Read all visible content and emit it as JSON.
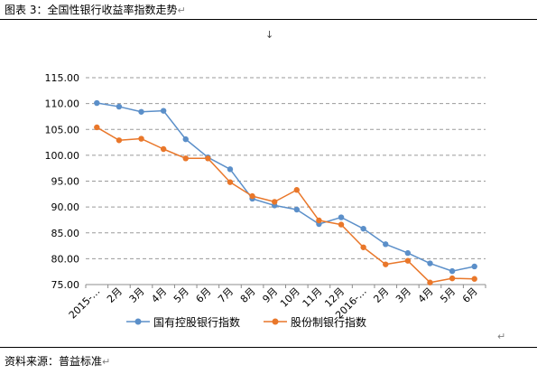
{
  "caption": {
    "text": "图表 3：全国性银行收益率指数走势",
    "return_mark": "↵"
  },
  "anchor_mark": "↓",
  "source": {
    "text": "资料来源：普益标准",
    "return_mark": "↵"
  },
  "trailing_mark": "↵",
  "chart_data": {
    "type": "line",
    "title": "",
    "xlabel": "",
    "ylabel": "",
    "ylim": [
      75,
      115
    ],
    "yticks": [
      "115.00",
      "110.00",
      "105.00",
      "100.00",
      "95.00",
      "90.00",
      "85.00",
      "80.00",
      "75.00"
    ],
    "categories": [
      "2015-…",
      "2月",
      "3月",
      "4月",
      "5月",
      "6月",
      "7月",
      "8月",
      "9月",
      "10月",
      "11月",
      "12月",
      "2016-…",
      "2月",
      "3月",
      "4月",
      "5月",
      "6月"
    ],
    "grid": "horizontal dashed",
    "legend_position": "bottom",
    "series": [
      {
        "name": "国有控股银行指数",
        "color": "#5b8fc9",
        "values": [
          110.1,
          109.4,
          108.4,
          108.6,
          103.1,
          99.6,
          97.3,
          91.6,
          90.3,
          89.5,
          86.7,
          88.0,
          85.8,
          82.8,
          81.1,
          79.1,
          77.6,
          78.5
        ]
      },
      {
        "name": "股份制银行指数",
        "color": "#e9772a",
        "values": [
          105.4,
          102.9,
          103.2,
          101.2,
          99.4,
          99.4,
          94.8,
          92.1,
          91.0,
          93.3,
          87.4,
          86.6,
          82.2,
          78.9,
          79.6,
          75.4,
          76.2,
          76.1
        ]
      }
    ]
  }
}
